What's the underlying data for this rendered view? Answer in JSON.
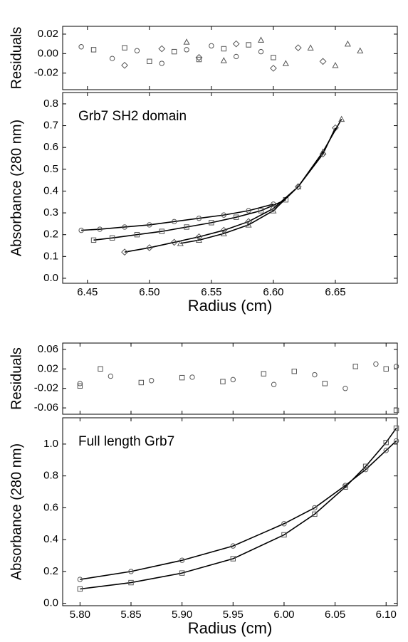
{
  "chart_data": [
    {
      "type": "scatter",
      "ylabel": "Residuals",
      "xlim": [
        6.43,
        6.7
      ],
      "xticks": [
        6.45,
        6.5,
        6.55,
        6.6,
        6.65
      ],
      "ylim": [
        -0.037,
        0.028
      ],
      "yticks": [
        0.02,
        {
          "value": 0,
          "label": "0.00"
        },
        -0.02
      ],
      "series": [
        {
          "marker": "circle",
          "color": "#555555",
          "x": [
            6.445,
            6.47,
            6.49,
            6.51,
            6.53,
            6.55,
            6.57,
            6.59
          ],
          "values": [
            0.007,
            -0.005,
            0.003,
            -0.01,
            0.004,
            0.008,
            -0.003,
            0.002
          ]
        },
        {
          "marker": "square",
          "color": "#555555",
          "x": [
            6.455,
            6.48,
            6.5,
            6.52,
            6.54,
            6.56,
            6.58,
            6.6
          ],
          "values": [
            0.004,
            0.006,
            -0.008,
            0.002,
            -0.006,
            0.005,
            0.009,
            -0.004
          ]
        },
        {
          "marker": "diamond",
          "color": "#555555",
          "x": [
            6.48,
            6.51,
            6.54,
            6.57,
            6.6,
            6.62,
            6.64
          ],
          "values": [
            -0.012,
            0.005,
            -0.004,
            0.01,
            -0.015,
            0.006,
            -0.008
          ]
        },
        {
          "marker": "triangle",
          "color": "#555555",
          "x": [
            6.53,
            6.56,
            6.59,
            6.61,
            6.63,
            6.65,
            6.66,
            6.67
          ],
          "values": [
            0.012,
            -0.007,
            0.014,
            -0.01,
            0.006,
            -0.012,
            0.01,
            0.003
          ]
        }
      ]
    },
    {
      "type": "scatter",
      "ylabel": "Absorbance (280 nm)",
      "xlabel": "Radius (cm)",
      "annotation": "Grb7 SH2 domain",
      "fit_line": true,
      "xlim": [
        6.43,
        6.7
      ],
      "xticks": [
        6.45,
        {
          "value": 6.5,
          "label": "6.50"
        },
        6.55,
        {
          "value": 6.6,
          "label": "6.60"
        },
        6.65
      ],
      "ylim": [
        -0.023,
        0.852
      ],
      "yticks": [
        {
          "value": 0,
          "label": "0.0"
        },
        0.1,
        0.2,
        0.3,
        0.4,
        0.5,
        0.6,
        0.7,
        0.8
      ],
      "series": [
        {
          "marker": "circle",
          "color": "#555555",
          "x": [
            6.445,
            6.46,
            6.48,
            6.5,
            6.52,
            6.54,
            6.56,
            6.58,
            6.6
          ],
          "values": [
            0.22,
            0.225,
            0.235,
            0.245,
            0.26,
            0.275,
            0.29,
            0.31,
            0.34
          ]
        },
        {
          "marker": "square",
          "color": "#555555",
          "x": [
            6.455,
            6.47,
            6.49,
            6.51,
            6.53,
            6.55,
            6.57,
            6.59,
            6.61
          ],
          "values": [
            0.175,
            0.185,
            0.2,
            0.215,
            0.235,
            0.255,
            0.28,
            0.31,
            0.36
          ]
        },
        {
          "marker": "diamond",
          "color": "#555555",
          "x": [
            6.48,
            6.5,
            6.52,
            6.54,
            6.56,
            6.58,
            6.6,
            6.62,
            6.64,
            6.65
          ],
          "values": [
            0.12,
            0.14,
            0.165,
            0.19,
            0.22,
            0.26,
            0.32,
            0.42,
            0.57,
            0.69
          ]
        },
        {
          "marker": "triangle",
          "color": "#555555",
          "x": [
            6.525,
            6.54,
            6.56,
            6.58,
            6.6,
            6.62,
            6.64,
            6.655
          ],
          "values": [
            0.16,
            0.175,
            0.205,
            0.245,
            0.31,
            0.42,
            0.58,
            0.73
          ]
        }
      ]
    },
    {
      "type": "scatter",
      "ylabel": "Residuals",
      "xlim": [
        5.783,
        6.111
      ],
      "xticks": [
        5.8,
        5.85,
        5.9,
        5.95,
        6,
        6.05,
        6.1
      ],
      "ylim": [
        -0.073,
        0.073
      ],
      "yticks": [
        0.06,
        0.02,
        -0.02,
        -0.06
      ],
      "series": [
        {
          "marker": "circle",
          "color": "#555555",
          "x": [
            5.8,
            5.83,
            5.87,
            5.91,
            5.95,
            5.99,
            6.03,
            6.06,
            6.09,
            6.11
          ],
          "values": [
            -0.01,
            0.005,
            -0.004,
            0.003,
            -0.002,
            -0.012,
            0.008,
            -0.02,
            0.03,
            0.025
          ]
        },
        {
          "marker": "square",
          "color": "#555555",
          "x": [
            5.8,
            5.82,
            5.86,
            5.9,
            5.94,
            5.98,
            6.01,
            6.04,
            6.07,
            6.1,
            6.11
          ],
          "values": [
            -0.015,
            0.02,
            -0.008,
            0.002,
            -0.006,
            0.01,
            0.015,
            -0.01,
            0.025,
            0.02,
            -0.065
          ]
        }
      ]
    },
    {
      "type": "scatter",
      "ylabel": "Absorbance (280 nm)",
      "xlabel": "Radius (cm)",
      "annotation": "Full length Grb7",
      "fit_line": true,
      "xlim": [
        5.783,
        6.111
      ],
      "xticks": [
        {
          "value": 5.8,
          "label": "5.80"
        },
        5.85,
        {
          "value": 5.9,
          "label": "5.90"
        },
        5.95,
        {
          "value": 6,
          "label": "6.00"
        },
        6.05,
        {
          "value": 6.1,
          "label": "6.10"
        }
      ],
      "ylim": [
        -0.015,
        1.165
      ],
      "yticks": [
        {
          "value": 0,
          "label": "0.0"
        },
        0.2,
        0.4,
        0.6,
        0.8,
        {
          "value": 1,
          "label": "1.0"
        }
      ],
      "series": [
        {
          "marker": "circle",
          "color": "#555555",
          "x": [
            5.8,
            5.85,
            5.9,
            5.95,
            6,
            6.03,
            6.06,
            6.08,
            6.1,
            6.11
          ],
          "values": [
            0.15,
            0.2,
            0.27,
            0.36,
            0.5,
            0.6,
            0.74,
            0.84,
            0.96,
            1.02
          ]
        },
        {
          "marker": "square",
          "color": "#555555",
          "x": [
            5.8,
            5.85,
            5.9,
            5.95,
            6,
            6.03,
            6.06,
            6.08,
            6.1,
            6.11
          ],
          "values": [
            0.09,
            0.13,
            0.19,
            0.28,
            0.43,
            0.56,
            0.73,
            0.86,
            1.01,
            1.1
          ]
        }
      ]
    }
  ]
}
